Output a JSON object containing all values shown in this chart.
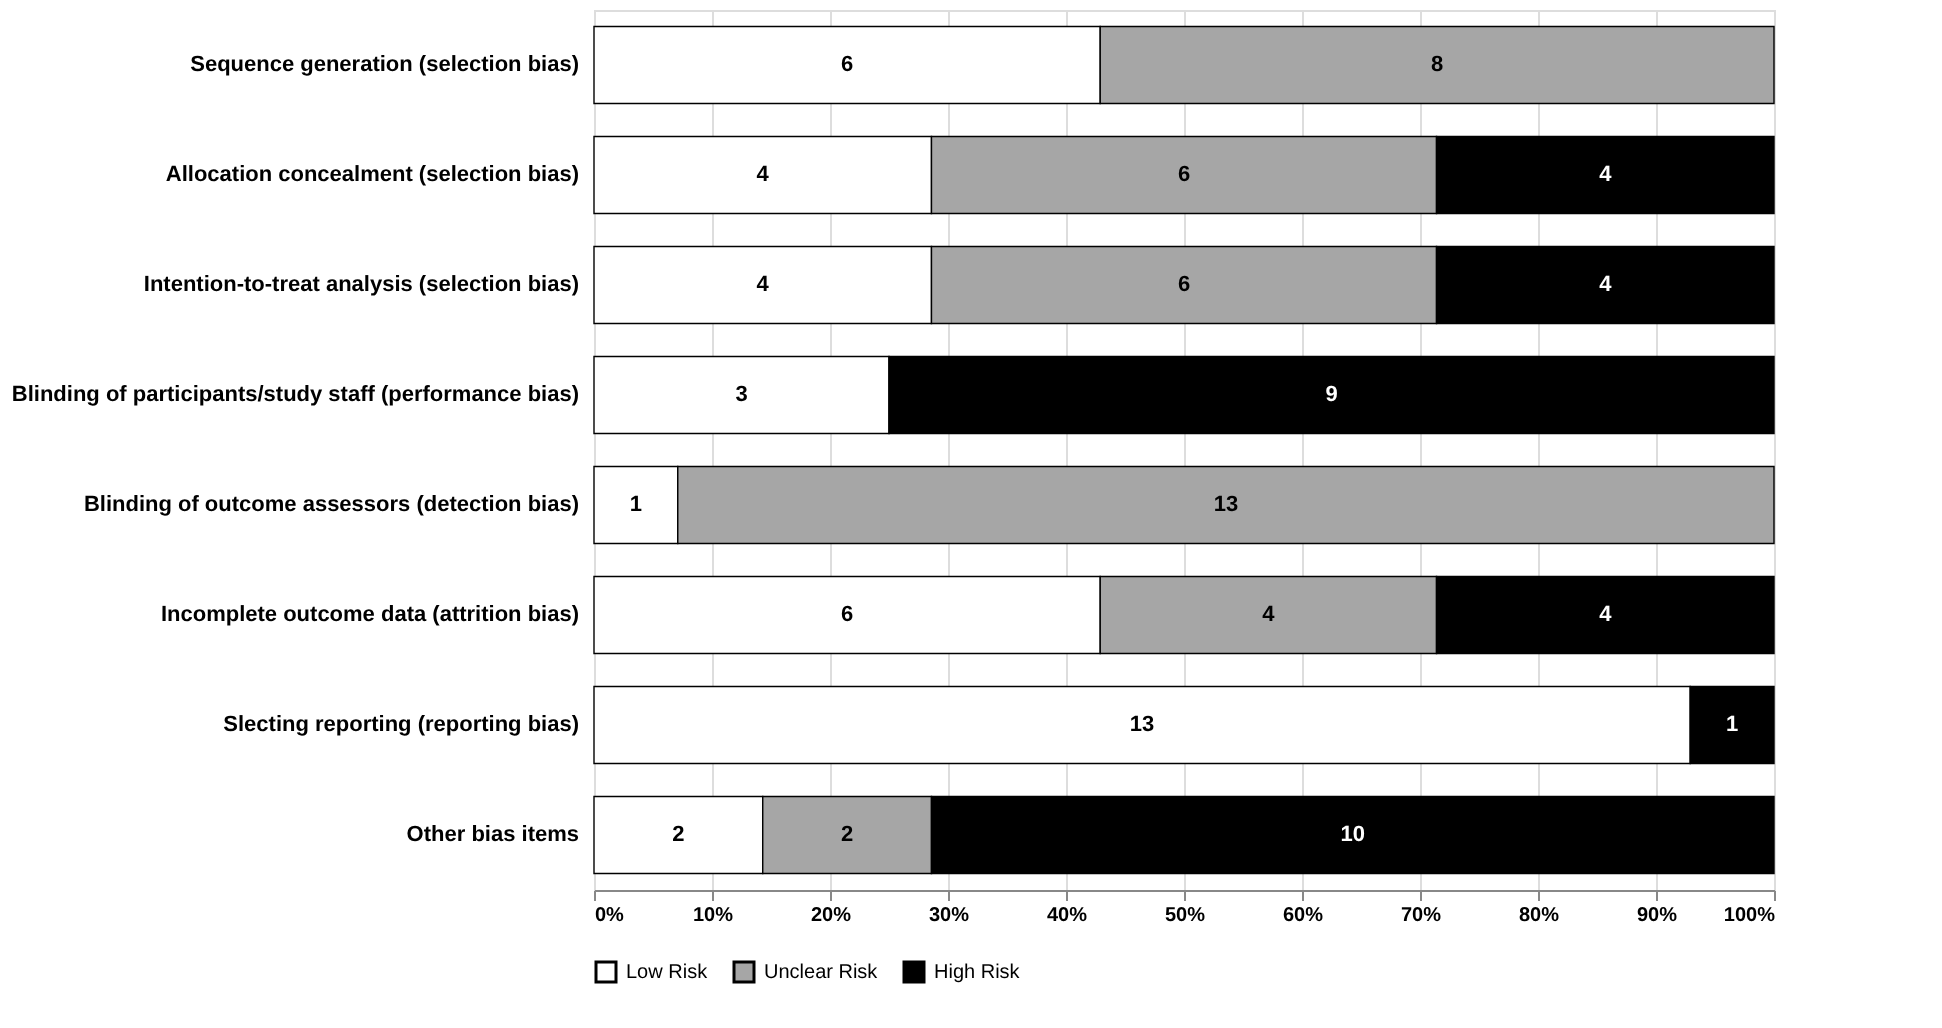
{
  "chart_data": {
    "type": "bar",
    "orientation": "horizontal",
    "stacked": true,
    "categories": [
      "Sequence generation (selection bias)",
      "Allocation concealment (selection bias)",
      "Intention-to-treat analysis (selection bias)",
      "Blinding of participants/study staff (performance bias)",
      "Blinding of outcome assessors (detection bias)",
      "Incomplete outcome data (attrition bias)",
      "Slecting reporting (reporting bias)",
      "Other bias items"
    ],
    "series": [
      {
        "name": "Low Risk",
        "color": "#ffffff",
        "values": [
          42.9,
          28.6,
          28.6,
          25,
          7.1,
          42.9,
          92.9,
          14.3
        ]
      },
      {
        "name": "Unclear Risk",
        "color": "#a6a6a6",
        "values": [
          57.1,
          42.8,
          42.8,
          0,
          92.9,
          28.5,
          0,
          14.3
        ]
      },
      {
        "name": "High Risk",
        "color": "#000000",
        "values": [
          0,
          28.6,
          28.6,
          75,
          0,
          28.6,
          7.1,
          71.4
        ]
      }
    ],
    "annotations": [
      {
        "text": "6",
        "x": 21.45,
        "y": "Sequence generation (selection bias)"
      },
      {
        "text": "8",
        "x": 71.45,
        "y": "Sequence generation (selection bias)"
      },
      {
        "text": "4",
        "x": 14.3,
        "y": "Allocation concealment (selection bias)"
      },
      {
        "text": "6",
        "x": 50,
        "y": "Allocation concealment (selection bias)"
      },
      {
        "text": "4",
        "x": 85.7,
        "y": "Allocation concealment (selection bias)"
      },
      {
        "text": "4",
        "x": 14.3,
        "y": "Intention-to-treat analysis (selection bias)"
      },
      {
        "text": "6",
        "x": 50,
        "y": "Intention-to-treat analysis (selection bias)"
      },
      {
        "text": "4",
        "x": 85.7,
        "y": "Intention-to-treat analysis (selection bias)"
      },
      {
        "text": "3",
        "x": 12.5,
        "y": "Blinding of participants/study staff (performance bias)"
      },
      {
        "text": "9",
        "x": 62.5,
        "y": "Blinding of participants/study staff (performance bias)"
      },
      {
        "text": "1",
        "x": 3.55,
        "y": "Blinding of outcome assessors (detection bias)"
      },
      {
        "text": "13",
        "x": 53.55,
        "y": "Blinding of outcome assessors (detection bias)"
      },
      {
        "text": "6",
        "x": 21.45,
        "y": "Incomplete outcome data (attrition bias)"
      },
      {
        "text": "4",
        "x": 57.15,
        "y": "Incomplete outcome data (attrition bias)"
      },
      {
        "text": "4",
        "x": 85.7,
        "y": "Incomplete outcome data (attrition bias)"
      },
      {
        "text": "13",
        "x": 46.45,
        "y": "Slecting reporting (reporting bias)"
      },
      {
        "text": "1",
        "x": 96.45,
        "y": "Slecting reporting (reporting bias)"
      },
      {
        "text": "2",
        "x": 7.15,
        "y": "Other bias items"
      },
      {
        "text": "2",
        "x": 21.45,
        "y": "Other bias items"
      },
      {
        "text": "10",
        "x": 64.3,
        "y": "Other bias items"
      }
    ],
    "xlim": [
      0,
      100
    ],
    "xticks": [
      {
        "value": 0,
        "label": "0%"
      },
      {
        "value": 10,
        "label": "10%"
      },
      {
        "value": 20,
        "label": "20%"
      },
      {
        "value": 30,
        "label": "30%"
      },
      {
        "value": 40,
        "label": "40%"
      },
      {
        "value": 50,
        "label": "50%"
      },
      {
        "value": 60,
        "label": "60%"
      },
      {
        "value": 70,
        "label": "70%"
      },
      {
        "value": 80,
        "label": "80%"
      },
      {
        "value": 90,
        "label": "90%"
      },
      {
        "value": 100,
        "label": "100%"
      }
    ],
    "grid": "x",
    "legend": "bottom"
  }
}
